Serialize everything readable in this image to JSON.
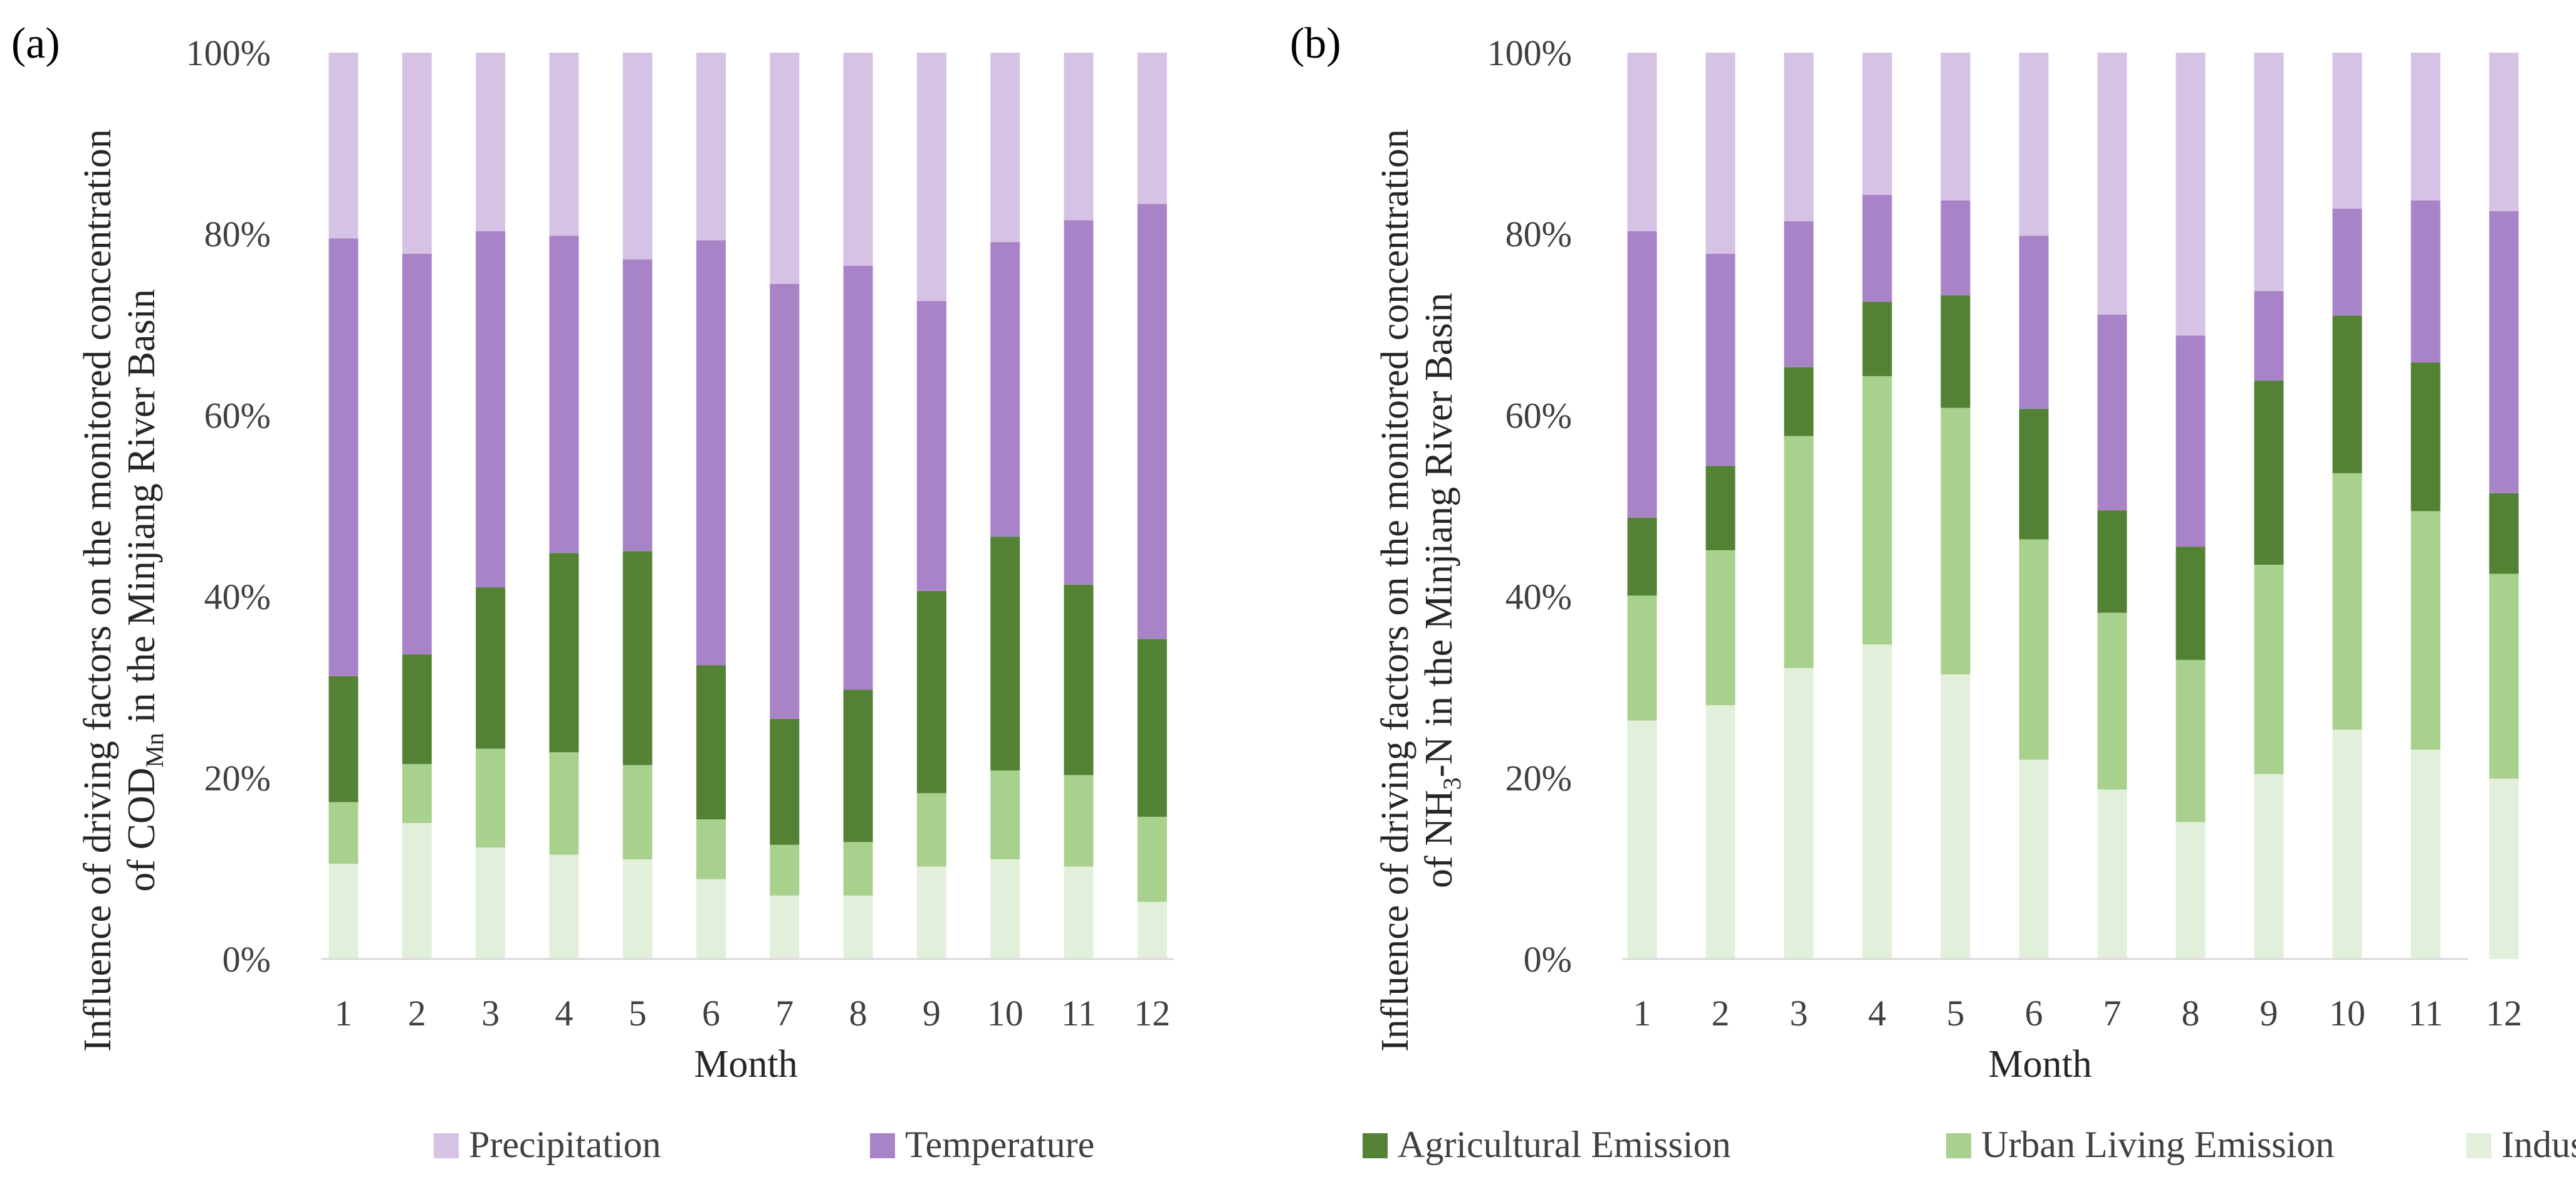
{
  "legend": {
    "items": [
      {
        "label": "Precipitation",
        "color": "#d5c2e5"
      },
      {
        "label": "Temperature",
        "color": "#a983c8"
      },
      {
        "label": "Agricultural Emission",
        "color": "#548235"
      },
      {
        "label": "Urban Living Emission",
        "color": "#a9d18e"
      },
      {
        "label": "Industrial Emission",
        "color": "#e2efda"
      }
    ]
  },
  "panels": [
    {
      "panel_label": "(a)",
      "ylabel_pre": "Influence of driving factors on the monitored concentration",
      "ylabel_line2_pre": "of COD",
      "ylabel_line2_sub": "Mn",
      "ylabel_line2_post": " in the Minjiang River Basin",
      "xlabel": "Month"
    },
    {
      "panel_label": "(b)",
      "ylabel_pre": "Influence of driving factors on the monitored concentration",
      "ylabel_line2_pre": "of NH",
      "ylabel_line2_sub": "3",
      "ylabel_line2_post": "-N in the Minjiang River Basin",
      "xlabel": "Month"
    }
  ],
  "chart_data": [
    {
      "type": "bar",
      "stacked": true,
      "title": "(a)",
      "xlabel": "Month",
      "ylabel": "Influence of driving factors on the monitored concentration of COD_Mn in the Minjiang River Basin",
      "categories": [
        "1",
        "2",
        "3",
        "4",
        "5",
        "6",
        "7",
        "8",
        "9",
        "10",
        "11",
        "12"
      ],
      "yticks": [
        "0%",
        "20%",
        "40%",
        "60%",
        "80%",
        "100%"
      ],
      "ylim": [
        0,
        100
      ],
      "series": [
        {
          "name": "Industrial Emission",
          "values": [
            10.5,
            15.0,
            12.3,
            11.5,
            11.0,
            8.8,
            7.0,
            7.0,
            10.2,
            11.0,
            10.2,
            6.3
          ]
        },
        {
          "name": "Urban Living Emission",
          "values": [
            6.8,
            6.5,
            10.9,
            11.3,
            10.4,
            6.6,
            5.6,
            5.9,
            8.1,
            9.8,
            10.1,
            9.4
          ]
        },
        {
          "name": "Agricultural Emission",
          "values": [
            13.9,
            12.1,
            17.8,
            22.0,
            23.6,
            17.0,
            13.9,
            16.8,
            22.3,
            25.8,
            21.0,
            19.6
          ]
        },
        {
          "name": "Temperature",
          "values": [
            48.3,
            44.2,
            39.3,
            35.0,
            32.2,
            46.9,
            48.0,
            46.8,
            32.0,
            32.5,
            40.2,
            48.0
          ]
        },
        {
          "name": "Precipitation",
          "values": [
            20.5,
            22.2,
            19.7,
            20.2,
            22.8,
            20.7,
            25.5,
            23.5,
            27.4,
            20.9,
            18.5,
            16.7
          ]
        }
      ]
    },
    {
      "type": "bar",
      "stacked": true,
      "title": "(b)",
      "xlabel": "Month",
      "ylabel": "Influence of driving factors on the monitored concentration of NH3-N in the Minjiang River Basin",
      "categories": [
        "1",
        "2",
        "3",
        "4",
        "5",
        "6",
        "7",
        "8",
        "9",
        "10",
        "11",
        "12"
      ],
      "yticks": [
        "0%",
        "20%",
        "40%",
        "60%",
        "80%",
        "100%"
      ],
      "ylim": [
        0,
        100
      ],
      "series": [
        {
          "name": "Industrial Emission",
          "values": [
            26.3,
            28.0,
            32.1,
            34.7,
            31.4,
            22.0,
            18.7,
            15.1,
            20.4,
            25.3,
            23.1,
            19.9
          ]
        },
        {
          "name": "Urban Living Emission",
          "values": [
            13.8,
            17.1,
            25.6,
            29.6,
            29.4,
            24.3,
            19.5,
            17.9,
            23.1,
            28.3,
            26.3,
            22.6
          ]
        },
        {
          "name": "Agricultural Emission",
          "values": [
            8.6,
            9.3,
            7.6,
            8.2,
            12.4,
            14.4,
            11.3,
            12.5,
            20.3,
            17.4,
            16.4,
            8.9
          ]
        },
        {
          "name": "Temperature",
          "values": [
            31.6,
            23.4,
            16.1,
            11.8,
            10.5,
            19.1,
            21.6,
            23.3,
            9.9,
            11.8,
            17.9,
            31.1
          ]
        },
        {
          "name": "Precipitation",
          "values": [
            19.7,
            22.2,
            18.6,
            15.7,
            16.3,
            20.2,
            28.9,
            31.2,
            26.3,
            17.2,
            16.3,
            17.5
          ]
        }
      ]
    }
  ]
}
